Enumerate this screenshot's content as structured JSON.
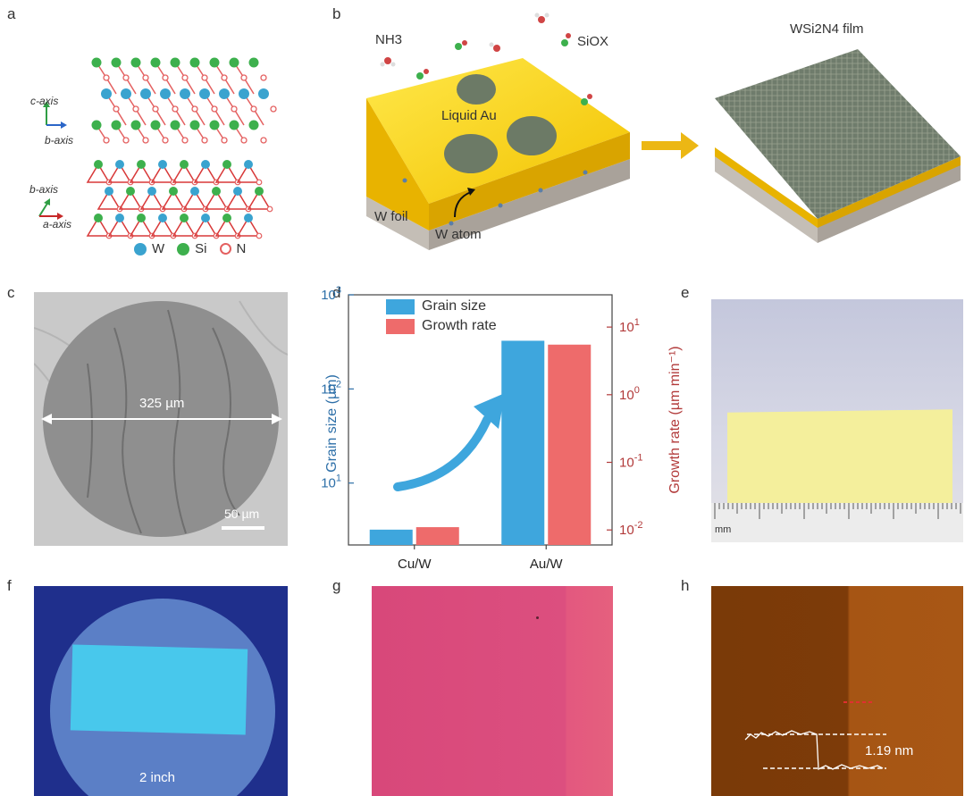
{
  "panels": {
    "a": {
      "label": "a",
      "axes_top": {
        "c": "c-axis",
        "b": "b-axis"
      },
      "axes_bottom": {
        "b": "b-axis",
        "a": "a-axis"
      },
      "legend": [
        {
          "name": "W",
          "color": "#3aa3cf"
        },
        {
          "name": "Si",
          "color": "#3db04d"
        },
        {
          "name": "N",
          "color": "#e46060"
        }
      ]
    },
    "b": {
      "label": "b",
      "nh3": "NH3",
      "siox": "SiOX",
      "liquid_au": "Liquid Au",
      "w_foil": "W foil",
      "w_atom": "W atom",
      "film": "WSi2N4 film"
    },
    "c": {
      "label": "c",
      "diameter": "325 µm",
      "scalebar": "50 µm"
    },
    "d": {
      "label": "d"
    },
    "e": {
      "label": "e",
      "ruler_unit": "mm"
    },
    "f": {
      "label": "f",
      "size": "2 inch"
    },
    "g": {
      "label": "g"
    },
    "h": {
      "label": "h",
      "step_height": "1.19 nm"
    }
  },
  "chart_data": {
    "type": "bar",
    "categories": [
      "Cu/W",
      "Au/W"
    ],
    "series": [
      {
        "name": "Grain size",
        "axis": "left",
        "color": "#3ea6dd",
        "values": [
          3.2,
          325
        ]
      },
      {
        "name": "Growth rate",
        "axis": "right",
        "color": "#ee6b6b",
        "values": [
          0.011,
          5.5
        ]
      }
    ],
    "ylabel_left": "Grain size (µm)",
    "ylabel_right": "Growth rate (µm min⁻¹)",
    "ylim_left": [
      2.2,
      1000
    ],
    "ylim_right": [
      0.006,
      30
    ],
    "yscale": "log",
    "left_ticks": [
      {
        "base": "10",
        "exp": "1",
        "value": 10
      },
      {
        "base": "10",
        "exp": "2",
        "value": 100
      },
      {
        "base": "10",
        "exp": "3",
        "value": 1000
      }
    ],
    "right_ticks": [
      {
        "base": "10",
        "exp": "-2",
        "value": 0.01
      },
      {
        "base": "10",
        "exp": "-1",
        "value": 0.1
      },
      {
        "base": "10",
        "exp": "0",
        "value": 1
      },
      {
        "base": "10",
        "exp": "1",
        "value": 10
      }
    ]
  }
}
